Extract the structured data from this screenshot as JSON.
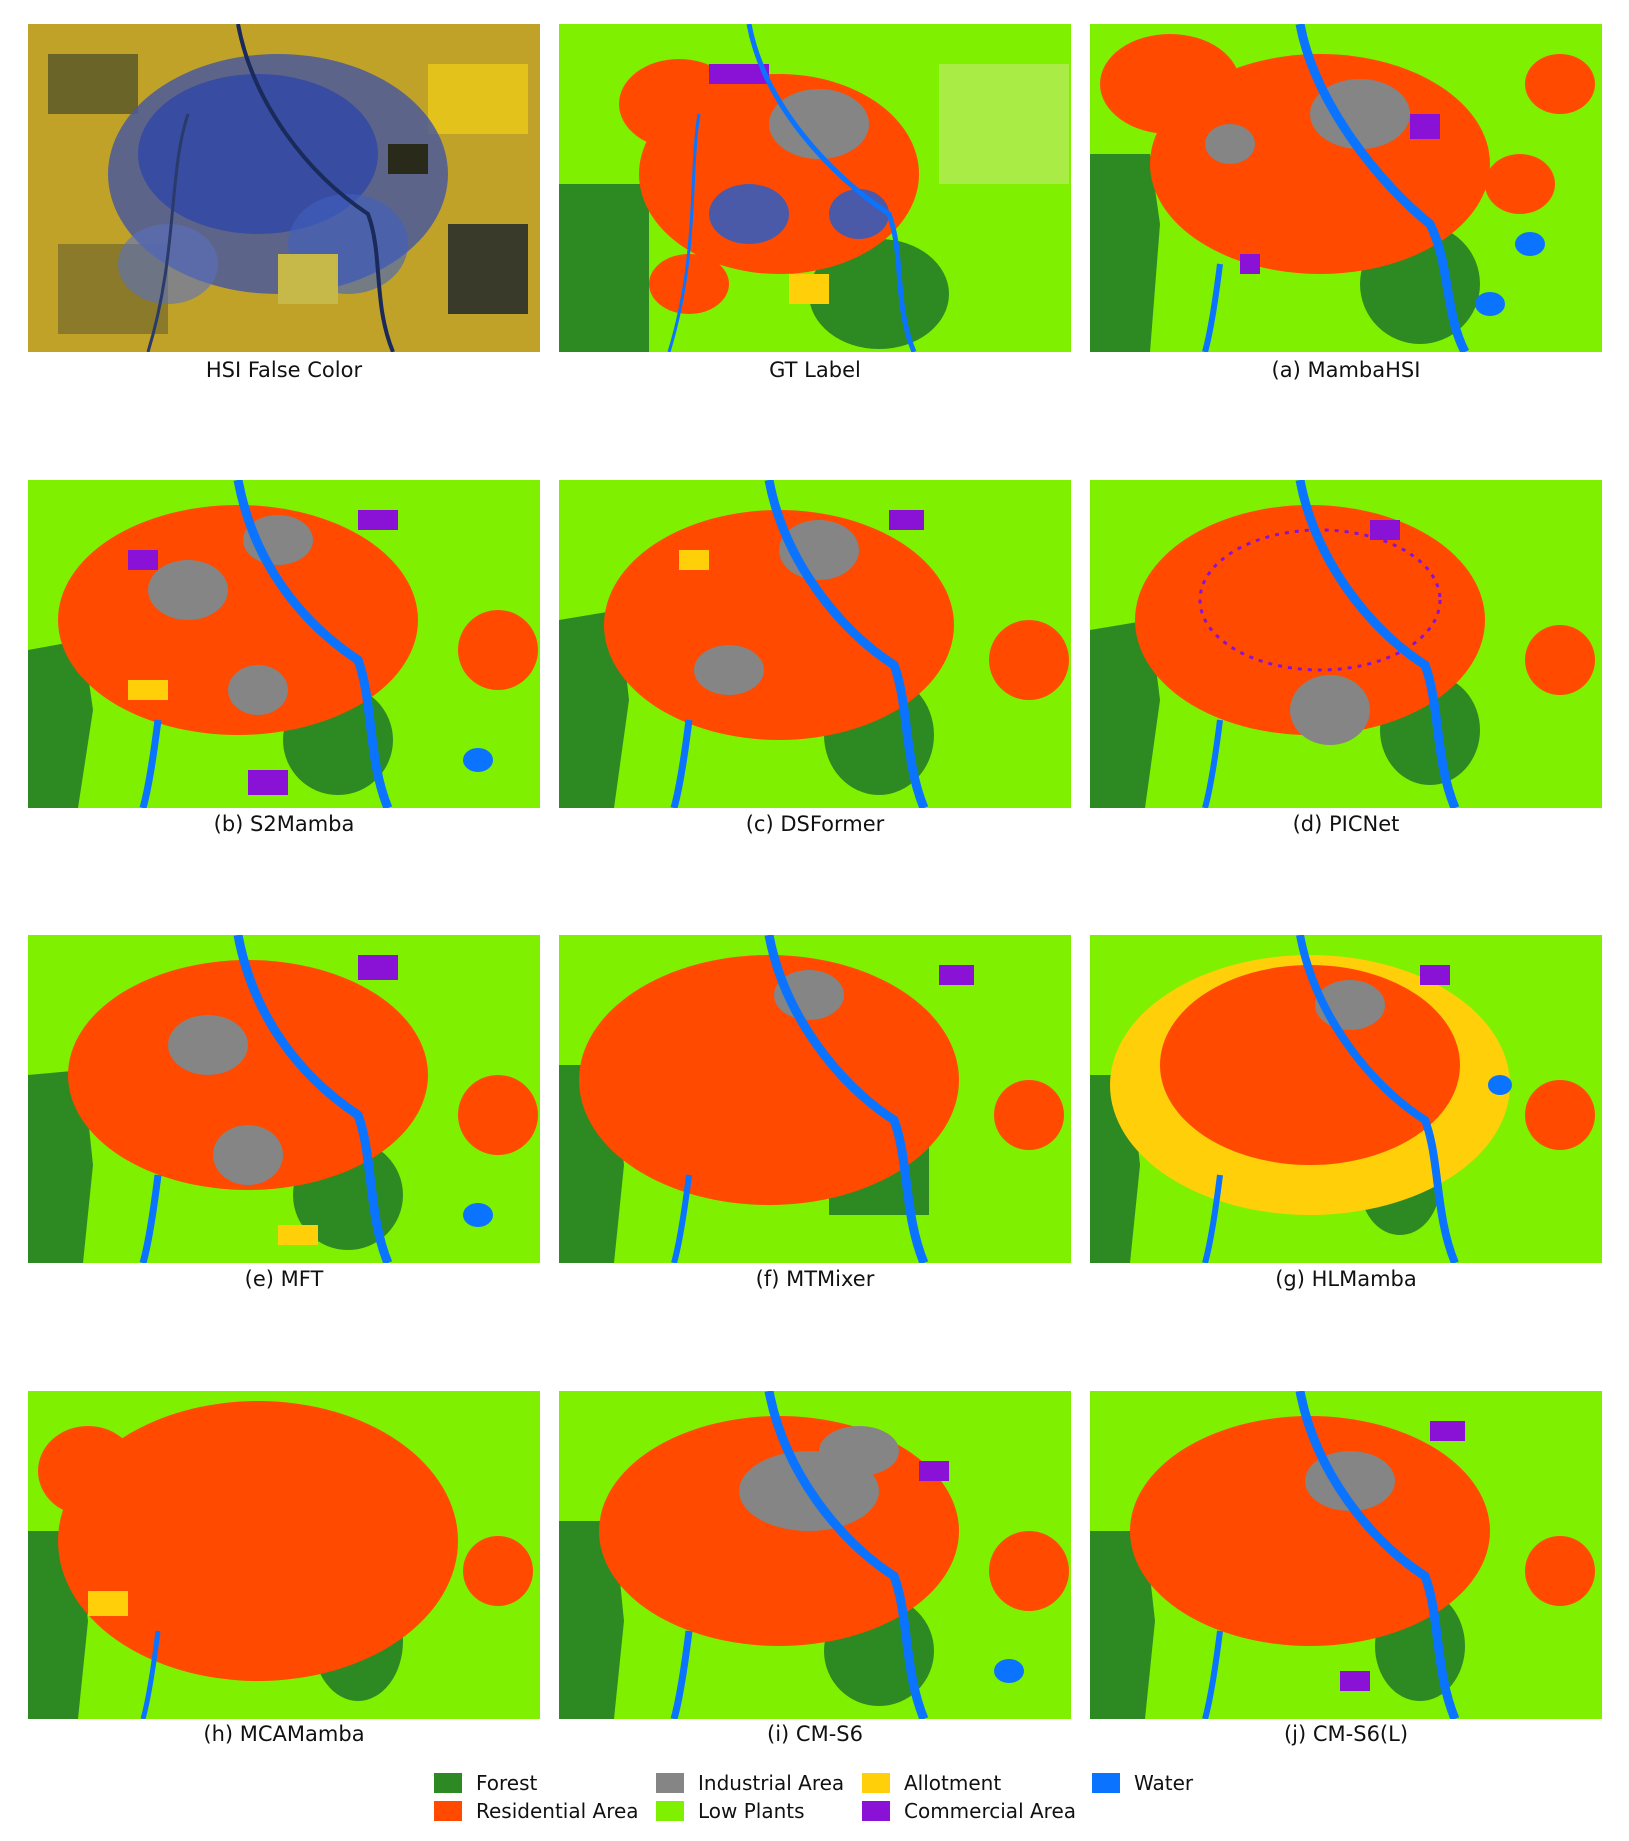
{
  "colors": {
    "forest": "#2d8a23",
    "residential": "#ff4a00",
    "industrial": "#858585",
    "low_plants": "#7ff000",
    "allotment": "#ffcf0a",
    "commercial": "#8a12d6",
    "water": "#0a73ff"
  },
  "panels": [
    {
      "id": "hsi",
      "caption": "HSI False Color"
    },
    {
      "id": "gt",
      "caption": "GT Label"
    },
    {
      "id": "a",
      "caption": "(a) MambaHSI"
    },
    {
      "id": "b",
      "caption": "(b) S2Mamba"
    },
    {
      "id": "c",
      "caption": "(c) DSFormer"
    },
    {
      "id": "d",
      "caption": "(d) PICNet"
    },
    {
      "id": "e",
      "caption": "(e) MFT"
    },
    {
      "id": "f",
      "caption": "(f) MTMixer"
    },
    {
      "id": "g",
      "caption": "(g) HLMamba"
    },
    {
      "id": "h",
      "caption": "(h) MCAMamba"
    },
    {
      "id": "i",
      "caption": "(i) CM-S6"
    },
    {
      "id": "j",
      "caption": "(j) CM-S6(L)"
    }
  ],
  "legend": [
    {
      "label": "Forest",
      "color": "#2d8a23"
    },
    {
      "label": "Residential Area",
      "color": "#ff4a00"
    },
    {
      "label": "Industrial Area",
      "color": "#858585"
    },
    {
      "label": "Low Plants",
      "color": "#7ff000"
    },
    {
      "label": "Allotment",
      "color": "#ffcf0a"
    },
    {
      "label": "Commercial Area",
      "color": "#8a12d6"
    },
    {
      "label": "Water",
      "color": "#0a73ff"
    }
  ]
}
